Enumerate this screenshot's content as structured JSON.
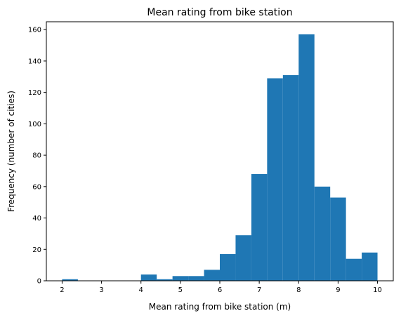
{
  "chart_data": {
    "type": "bar",
    "subtype": "histogram",
    "title": "Mean rating from bike station",
    "xlabel": "Mean rating from bike station (m)",
    "ylabel": "Frequency (number of cities)",
    "bin_edges": [
      2.0,
      2.4,
      2.8,
      3.2,
      3.6,
      4.0,
      4.4,
      4.8,
      5.2,
      5.6,
      6.0,
      6.4,
      6.8,
      7.2,
      7.6,
      8.0,
      8.4,
      8.8,
      9.2,
      9.6,
      10.0
    ],
    "values": [
      1,
      0,
      0,
      0,
      0,
      4,
      1,
      3,
      3,
      7,
      17,
      29,
      68,
      129,
      131,
      157,
      60,
      53,
      14,
      18
    ],
    "xlim": [
      1.6,
      10.4
    ],
    "ylim": [
      0,
      165
    ],
    "xticks": [
      2,
      3,
      4,
      5,
      6,
      7,
      8,
      9,
      10
    ],
    "yticks": [
      0,
      20,
      40,
      60,
      80,
      100,
      120,
      140,
      160
    ],
    "grid": false,
    "legend": "none",
    "bar_color": "#1f77b4"
  }
}
